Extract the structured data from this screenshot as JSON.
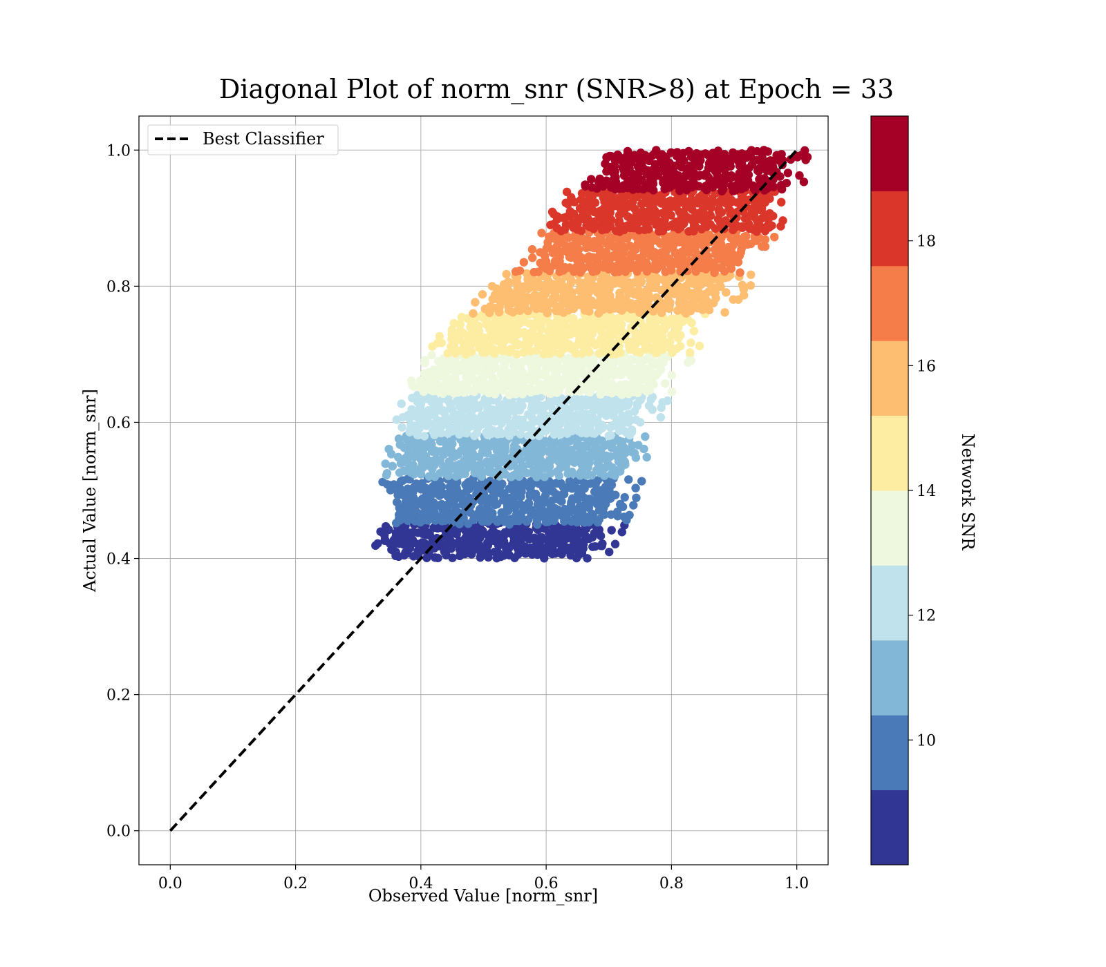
{
  "chart_data": {
    "type": "scatter",
    "title": "Diagonal Plot of norm_snr (SNR>8) at Epoch = 33",
    "xlabel": "Observed Value [norm_snr]",
    "ylabel": "Actual Value [norm_snr]",
    "xlim": [
      -0.05,
      1.05
    ],
    "ylim": [
      -0.05,
      1.05
    ],
    "x_ticks": [
      "0.0",
      "0.2",
      "0.4",
      "0.6",
      "0.8",
      "1.0"
    ],
    "y_ticks": [
      "0.0",
      "0.2",
      "0.4",
      "0.6",
      "0.8",
      "1.0"
    ],
    "grid": true,
    "legend": {
      "position": "top-left",
      "entries": [
        "Best Classifier"
      ]
    },
    "reference_line": {
      "name": "Best Classifier",
      "x": [
        0.0,
        1.0
      ],
      "y": [
        0.0,
        1.0
      ],
      "style": "dashed",
      "color": "#000000"
    },
    "colorbar": {
      "label": "Network SNR",
      "range": [
        8,
        20
      ],
      "ticks": [
        "10",
        "12",
        "14",
        "16",
        "18"
      ],
      "tick_values": [
        10,
        12,
        14,
        16,
        18
      ],
      "colors": [
        "#313695",
        "#4575b4",
        "#74add1",
        "#abd9e9",
        "#e0f3f8",
        "#ffffbf",
        "#fee090",
        "#fdae61",
        "#f46d43",
        "#d73027",
        "#a50026"
      ],
      "band_colors": [
        "#313695",
        "#4a7ab7",
        "#83b7d7",
        "#bfe2ec",
        "#eef8df",
        "#fdeda2",
        "#fdbe72",
        "#f47d4a",
        "#da372a",
        "#a50026"
      ]
    },
    "scatter_bands": [
      {
        "snr_range": [
          8.0,
          9.2
        ],
        "color": "#313695",
        "y_range": [
          0.4,
          0.45
        ],
        "x_left": [
          0.355,
          0.36
        ],
        "x_right": [
          0.66,
          0.69
        ]
      },
      {
        "snr_range": [
          9.2,
          10.4
        ],
        "color": "#4a7ab7",
        "y_range": [
          0.45,
          0.52
        ],
        "x_left": [
          0.36,
          0.37
        ],
        "x_right": [
          0.69,
          0.72
        ]
      },
      {
        "snr_range": [
          10.4,
          11.6
        ],
        "color": "#83b7d7",
        "y_range": [
          0.52,
          0.58
        ],
        "x_left": [
          0.37,
          0.38
        ],
        "x_right": [
          0.72,
          0.73
        ]
      },
      {
        "snr_range": [
          11.6,
          12.8
        ],
        "color": "#bfe2ec",
        "y_range": [
          0.58,
          0.64
        ],
        "x_left": [
          0.38,
          0.4
        ],
        "x_right": [
          0.73,
          0.76
        ]
      },
      {
        "snr_range": [
          12.8,
          14.0
        ],
        "color": "#eef8df",
        "y_range": [
          0.64,
          0.7
        ],
        "x_left": [
          0.4,
          0.44
        ],
        "x_right": [
          0.76,
          0.8
        ]
      },
      {
        "snr_range": [
          14.0,
          15.2
        ],
        "color": "#fdeda2",
        "y_range": [
          0.7,
          0.76
        ],
        "x_left": [
          0.44,
          0.48
        ],
        "x_right": [
          0.8,
          0.83
        ]
      },
      {
        "snr_range": [
          15.2,
          16.4
        ],
        "color": "#fdbe72",
        "y_range": [
          0.76,
          0.82
        ],
        "x_left": [
          0.5,
          0.56
        ],
        "x_right": [
          0.86,
          0.9
        ]
      },
      {
        "snr_range": [
          16.4,
          17.6
        ],
        "color": "#f47d4a",
        "y_range": [
          0.82,
          0.88
        ],
        "x_left": [
          0.58,
          0.62
        ],
        "x_right": [
          0.9,
          0.93
        ]
      },
      {
        "snr_range": [
          17.6,
          18.8
        ],
        "color": "#da372a",
        "y_range": [
          0.88,
          0.94
        ],
        "x_left": [
          0.62,
          0.66
        ],
        "x_right": [
          0.94,
          0.97
        ]
      },
      {
        "snr_range": [
          18.8,
          20.0
        ],
        "color": "#a50026",
        "y_range": [
          0.94,
          1.0
        ],
        "x_left": [
          0.67,
          0.73
        ],
        "x_right": [
          0.97,
          0.98
        ]
      }
    ]
  }
}
